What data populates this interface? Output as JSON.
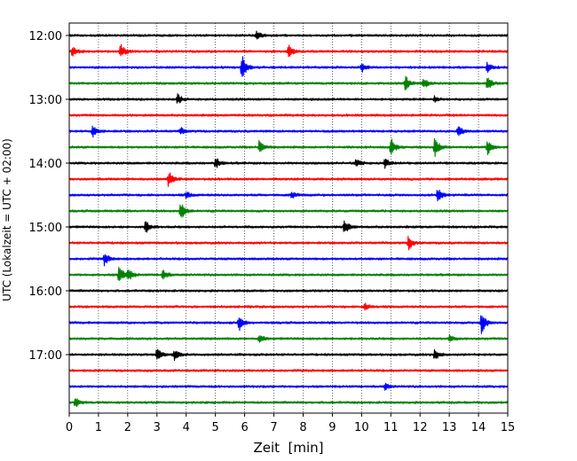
{
  "chart_data": {
    "type": "line",
    "title": "",
    "xlabel": "Zeit  [min]",
    "ylabel": "UTC (Lokalzeit = UTC + 02:00)",
    "xlim": [
      0,
      15
    ],
    "x_ticks": [
      0,
      1,
      2,
      3,
      4,
      5,
      6,
      7,
      8,
      9,
      10,
      11,
      12,
      13,
      14,
      15
    ],
    "y_tick_labels": [
      "12:00",
      "13:00",
      "14:00",
      "15:00",
      "16:00",
      "17:00"
    ],
    "grid": "vertical dotted",
    "trace_interval_min": 15,
    "trace_colors": [
      "#000000",
      "#ff0000",
      "#0000ff",
      "#008000"
    ],
    "traces": [
      {
        "start": "12:00",
        "color": "#000000",
        "events": [
          {
            "x": 6.4,
            "amp": 0.8
          }
        ]
      },
      {
        "start": "12:15",
        "color": "#ff0000",
        "events": [
          {
            "x": 0.1,
            "amp": 1.0
          },
          {
            "x": 1.75,
            "amp": 1.6
          },
          {
            "x": 7.5,
            "amp": 1.2
          }
        ]
      },
      {
        "start": "12:30",
        "color": "#0000ff",
        "events": [
          {
            "x": 5.9,
            "amp": 2.6
          },
          {
            "x": 10.0,
            "amp": 0.9
          },
          {
            "x": 14.3,
            "amp": 1.0
          }
        ]
      },
      {
        "start": "12:45",
        "color": "#008000",
        "events": [
          {
            "x": 11.5,
            "amp": 1.6
          },
          {
            "x": 12.1,
            "amp": 1.2
          },
          {
            "x": 14.3,
            "amp": 1.6
          }
        ]
      },
      {
        "start": "13:00",
        "color": "#000000",
        "events": [
          {
            "x": 3.7,
            "amp": 1.0
          },
          {
            "x": 12.5,
            "amp": 0.6
          }
        ]
      },
      {
        "start": "13:15",
        "color": "#ff0000",
        "events": []
      },
      {
        "start": "13:30",
        "color": "#0000ff",
        "events": [
          {
            "x": 0.8,
            "amp": 1.2
          },
          {
            "x": 3.8,
            "amp": 0.7
          },
          {
            "x": 13.3,
            "amp": 1.0
          }
        ]
      },
      {
        "start": "13:45",
        "color": "#008000",
        "events": [
          {
            "x": 6.5,
            "amp": 1.4
          },
          {
            "x": 11.0,
            "amp": 1.8
          },
          {
            "x": 12.5,
            "amp": 2.0
          },
          {
            "x": 14.3,
            "amp": 1.6
          }
        ]
      },
      {
        "start": "14:00",
        "color": "#000000",
        "events": [
          {
            "x": 5.0,
            "amp": 1.2
          },
          {
            "x": 9.8,
            "amp": 1.0
          },
          {
            "x": 10.8,
            "amp": 0.9
          }
        ]
      },
      {
        "start": "14:15",
        "color": "#ff0000",
        "events": [
          {
            "x": 3.4,
            "amp": 1.8
          }
        ]
      },
      {
        "start": "14:30",
        "color": "#0000ff",
        "events": [
          {
            "x": 4.0,
            "amp": 0.7
          },
          {
            "x": 7.6,
            "amp": 0.8
          },
          {
            "x": 12.6,
            "amp": 1.4
          }
        ]
      },
      {
        "start": "14:45",
        "color": "#008000",
        "events": [
          {
            "x": 3.8,
            "amp": 2.0
          }
        ]
      },
      {
        "start": "15:00",
        "color": "#000000",
        "events": [
          {
            "x": 2.6,
            "amp": 1.4
          },
          {
            "x": 9.4,
            "amp": 1.6
          }
        ]
      },
      {
        "start": "15:15",
        "color": "#ff0000",
        "events": [
          {
            "x": 11.6,
            "amp": 1.4
          }
        ]
      },
      {
        "start": "15:30",
        "color": "#0000ff",
        "events": [
          {
            "x": 1.2,
            "amp": 1.3
          }
        ]
      },
      {
        "start": "15:45",
        "color": "#008000",
        "events": [
          {
            "x": 1.7,
            "amp": 2.0
          },
          {
            "x": 2.0,
            "amp": 1.4
          },
          {
            "x": 3.2,
            "amp": 1.0
          }
        ]
      },
      {
        "start": "16:00",
        "color": "#000000",
        "events": []
      },
      {
        "start": "16:15",
        "color": "#ff0000",
        "events": [
          {
            "x": 10.1,
            "amp": 0.8
          }
        ]
      },
      {
        "start": "16:30",
        "color": "#0000ff",
        "events": [
          {
            "x": 5.8,
            "amp": 1.6
          },
          {
            "x": 14.1,
            "amp": 2.4
          }
        ]
      },
      {
        "start": "16:45",
        "color": "#008000",
        "events": [
          {
            "x": 6.5,
            "amp": 0.8
          },
          {
            "x": 13.0,
            "amp": 0.6
          }
        ]
      },
      {
        "start": "17:00",
        "color": "#000000",
        "events": [
          {
            "x": 3.0,
            "amp": 1.4
          },
          {
            "x": 3.6,
            "amp": 1.0
          },
          {
            "x": 12.5,
            "amp": 1.2
          }
        ]
      },
      {
        "start": "17:15",
        "color": "#ff0000",
        "events": []
      },
      {
        "start": "17:30",
        "color": "#0000ff",
        "events": [
          {
            "x": 10.8,
            "amp": 0.6
          }
        ]
      },
      {
        "start": "17:45",
        "color": "#008000",
        "events": [
          {
            "x": 0.2,
            "amp": 1.0
          }
        ]
      }
    ]
  }
}
